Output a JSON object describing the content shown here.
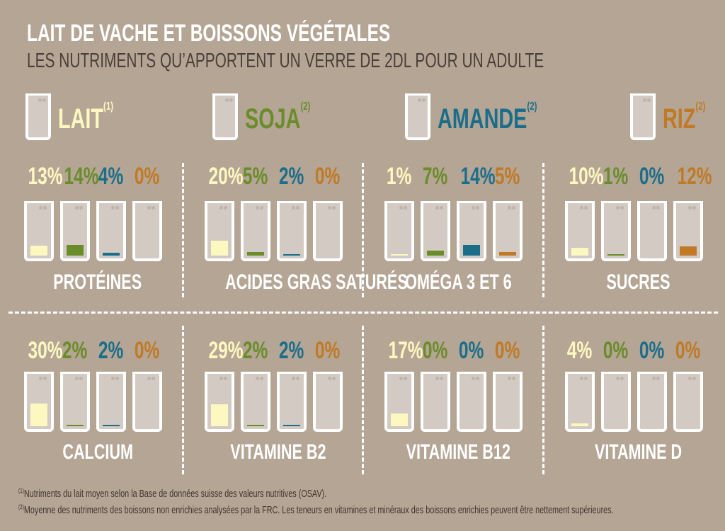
{
  "title": "LAIT DE VACHE ET BOISSONS VÉGÉTALES",
  "subtitle": "LES NUTRIMENTS QU’APPORTENT UN VERRE DE 2DL POUR UN ADULTE",
  "colors": {
    "background": "#b5a595",
    "lait": "#fdf8c0",
    "soja": "#6a8c2a",
    "amande": "#1b6e8a",
    "riz": "#c07a26",
    "glass": "#d3cbc3"
  },
  "legend": [
    {
      "label": "LAIT",
      "note": "(1)",
      "color": "#fdf8c0"
    },
    {
      "label": "SOJA",
      "note": "(2)",
      "color": "#6a8c2a"
    },
    {
      "label": "AMANDE",
      "note": "(2)",
      "color": "#1b6e8a"
    },
    {
      "label": "RIZ",
      "note": "(2)",
      "color": "#c07a26"
    }
  ],
  "chart_data": {
    "type": "bar",
    "unit": "%",
    "series_names": [
      "LAIT",
      "SOJA",
      "AMANDE",
      "RIZ"
    ],
    "categories": [
      "PROTÉINES",
      "ACIDES GRAS SATURÉS",
      "OMÉGA 3 ET 6",
      "SUCRES",
      "CALCIUM",
      "VITAMINE B2",
      "VITAMINE B12",
      "VITAMINE D"
    ],
    "values": [
      [
        13,
        14,
        4,
        0
      ],
      [
        20,
        5,
        2,
        0
      ],
      [
        1,
        7,
        14,
        5
      ],
      [
        10,
        1,
        0,
        12
      ],
      [
        30,
        2,
        2,
        0
      ],
      [
        29,
        2,
        2,
        0
      ],
      [
        17,
        0,
        0,
        0
      ],
      [
        4,
        0,
        0,
        0
      ]
    ],
    "labels": [
      [
        "13%",
        "14%",
        "4%",
        "0%"
      ],
      [
        "20%",
        "5%",
        "2%",
        "0%"
      ],
      [
        "1%",
        "7%",
        "14%",
        "5%"
      ],
      [
        "10%",
        "1%",
        "0%",
        "12%"
      ],
      [
        "30%",
        "2%",
        "2%",
        "0%"
      ],
      [
        "29%",
        "2%",
        "2%",
        "0%"
      ],
      [
        "17%",
        "0%",
        "0%",
        "0%"
      ],
      [
        "4%",
        "0%",
        "0%",
        "0%"
      ]
    ]
  },
  "footnotes": [
    {
      "mark": "(1)",
      "text": "Nutriments du lait moyen selon la Base de données suisse des valeurs nutritives (OSAV)."
    },
    {
      "mark": "(2)",
      "text": "Moyenne des nutriments des boissons non enrichies analysées par la FRC. Les teneurs en vitamines et minéraux des boissons enrichies peuvent être nettement supérieures."
    }
  ]
}
